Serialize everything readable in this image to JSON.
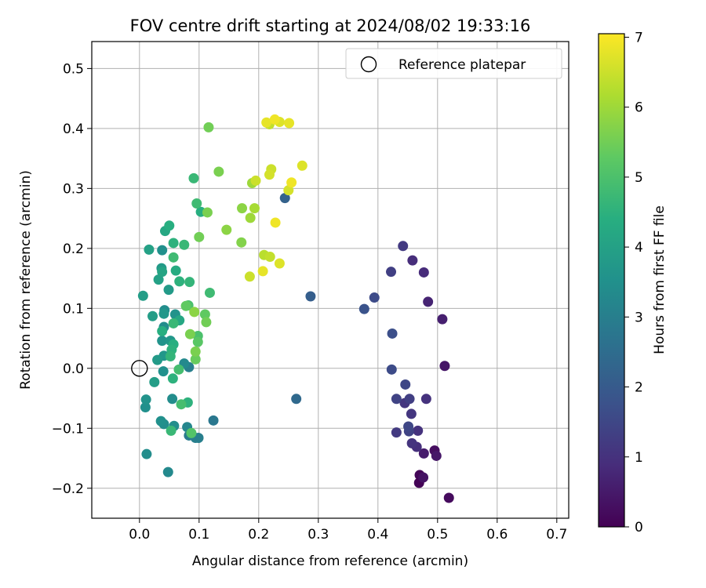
{
  "chart_data": {
    "type": "scatter",
    "title": "FOV centre drift starting at 2024/08/02 19:33:16",
    "xlabel": "Angular distance from reference (arcmin)",
    "ylabel": "Rotation from reference (arcmin)",
    "xlim": [
      -0.08,
      0.72
    ],
    "ylim": [
      -0.25,
      0.545
    ],
    "xticks": [
      0.0,
      0.1,
      0.2,
      0.3,
      0.4,
      0.5,
      0.6,
      0.7
    ],
    "xtick_labels": [
      "0.0",
      "0.1",
      "0.2",
      "0.3",
      "0.4",
      "0.5",
      "0.6",
      "0.7"
    ],
    "yticks": [
      -0.2,
      -0.1,
      0.0,
      0.1,
      0.2,
      0.3,
      0.4,
      0.5
    ],
    "ytick_labels": [
      "−0.2",
      "−0.1",
      "0.0",
      "0.1",
      "0.2",
      "0.3",
      "0.4",
      "0.5"
    ],
    "grid": true,
    "legend": {
      "placement": "top-right",
      "entries": [
        "Reference platepar"
      ]
    },
    "reference_point": {
      "x": 0.0,
      "y": 0.0,
      "marker": "open-circle"
    },
    "colorbar": {
      "label": "Hours from first FF file",
      "colormap": "viridis",
      "range": [
        0,
        7.05
      ],
      "ticks": [
        0,
        1,
        2,
        3,
        4,
        5,
        6,
        7
      ],
      "tick_labels": [
        "0",
        "1",
        "2",
        "3",
        "4",
        "5",
        "6",
        "7"
      ]
    },
    "points": [
      {
        "x": 0.469,
        "y": -0.191,
        "c": 0.05
      },
      {
        "x": 0.47,
        "y": -0.178,
        "c": 0.1
      },
      {
        "x": 0.519,
        "y": -0.216,
        "c": 0.2
      },
      {
        "x": 0.495,
        "y": -0.137,
        "c": 0.25
      },
      {
        "x": 0.476,
        "y": -0.182,
        "c": 0.35
      },
      {
        "x": 0.498,
        "y": -0.146,
        "c": 0.45
      },
      {
        "x": 0.477,
        "y": -0.142,
        "c": 0.55
      },
      {
        "x": 0.512,
        "y": 0.004,
        "c": 0.4
      },
      {
        "x": 0.508,
        "y": 0.082,
        "c": 0.6
      },
      {
        "x": 0.484,
        "y": 0.111,
        "c": 0.7
      },
      {
        "x": 0.477,
        "y": 0.16,
        "c": 0.85
      },
      {
        "x": 0.458,
        "y": 0.18,
        "c": 0.9
      },
      {
        "x": 0.442,
        "y": 0.204,
        "c": 1.2
      },
      {
        "x": 0.422,
        "y": 0.161,
        "c": 1.3
      },
      {
        "x": 0.394,
        "y": 0.118,
        "c": 1.6
      },
      {
        "x": 0.377,
        "y": 0.099,
        "c": 1.8
      },
      {
        "x": 0.424,
        "y": 0.058,
        "c": 1.7
      },
      {
        "x": 0.423,
        "y": -0.002,
        "c": 1.6
      },
      {
        "x": 0.446,
        "y": -0.027,
        "c": 1.5
      },
      {
        "x": 0.431,
        "y": -0.051,
        "c": 1.4
      },
      {
        "x": 0.445,
        "y": -0.058,
        "c": 1.1
      },
      {
        "x": 0.453,
        "y": -0.051,
        "c": 1.3
      },
      {
        "x": 0.481,
        "y": -0.051,
        "c": 1.0
      },
      {
        "x": 0.456,
        "y": -0.076,
        "c": 1.1
      },
      {
        "x": 0.451,
        "y": -0.097,
        "c": 1.5
      },
      {
        "x": 0.452,
        "y": -0.105,
        "c": 1.4
      },
      {
        "x": 0.431,
        "y": -0.107,
        "c": 1.2
      },
      {
        "x": 0.467,
        "y": -0.104,
        "c": 1.0
      },
      {
        "x": 0.457,
        "y": -0.125,
        "c": 1.05
      },
      {
        "x": 0.465,
        "y": -0.131,
        "c": 0.95
      },
      {
        "x": 0.287,
        "y": 0.12,
        "c": 2.1
      },
      {
        "x": 0.244,
        "y": 0.284,
        "c": 2.2
      },
      {
        "x": 0.263,
        "y": -0.051,
        "c": 2.4
      },
      {
        "x": 0.124,
        "y": -0.087,
        "c": 2.8
      },
      {
        "x": 0.099,
        "y": -0.116,
        "c": 3.0
      },
      {
        "x": 0.083,
        "y": -0.112,
        "c": 2.9
      },
      {
        "x": 0.048,
        "y": -0.173,
        "c": 3.3
      },
      {
        "x": 0.012,
        "y": -0.143,
        "c": 3.4
      },
      {
        "x": 0.01,
        "y": -0.065,
        "c": 3.5
      },
      {
        "x": 0.011,
        "y": -0.052,
        "c": 3.6
      },
      {
        "x": 0.036,
        "y": -0.088,
        "c": 3.5
      },
      {
        "x": 0.058,
        "y": -0.096,
        "c": 3.4
      },
      {
        "x": 0.08,
        "y": -0.098,
        "c": 3.2
      },
      {
        "x": 0.055,
        "y": -0.051,
        "c": 3.4
      },
      {
        "x": 0.025,
        "y": -0.023,
        "c": 3.9
      },
      {
        "x": 0.04,
        "y": -0.005,
        "c": 3.5
      },
      {
        "x": 0.056,
        "y": -0.017,
        "c": 4.5
      },
      {
        "x": 0.066,
        "y": -0.002,
        "c": 4.9
      },
      {
        "x": 0.075,
        "y": 0.008,
        "c": 3.3
      },
      {
        "x": 0.083,
        "y": 0.002,
        "c": 3.0
      },
      {
        "x": 0.03,
        "y": 0.014,
        "c": 3.8
      },
      {
        "x": 0.041,
        "y": 0.021,
        "c": 3.7
      },
      {
        "x": 0.052,
        "y": 0.02,
        "c": 4.6
      },
      {
        "x": 0.038,
        "y": 0.046,
        "c": 3.6
      },
      {
        "x": 0.052,
        "y": 0.046,
        "c": 3.7
      },
      {
        "x": 0.057,
        "y": 0.04,
        "c": 4.4
      },
      {
        "x": 0.054,
        "y": 0.031,
        "c": 4.5
      },
      {
        "x": 0.038,
        "y": 0.062,
        "c": 4.4
      },
      {
        "x": 0.041,
        "y": 0.069,
        "c": 3.4
      },
      {
        "x": 0.057,
        "y": 0.075,
        "c": 4.7
      },
      {
        "x": 0.067,
        "y": 0.08,
        "c": 4.2
      },
      {
        "x": 0.022,
        "y": 0.087,
        "c": 3.9
      },
      {
        "x": 0.041,
        "y": 0.091,
        "c": 3.7
      },
      {
        "x": 0.042,
        "y": 0.097,
        "c": 3.4
      },
      {
        "x": 0.06,
        "y": 0.09,
        "c": 3.6
      },
      {
        "x": 0.078,
        "y": 0.104,
        "c": 5.3
      },
      {
        "x": 0.082,
        "y": 0.105,
        "c": 5.0
      },
      {
        "x": 0.092,
        "y": 0.094,
        "c": 5.8
      },
      {
        "x": 0.11,
        "y": 0.09,
        "c": 5.3
      },
      {
        "x": 0.112,
        "y": 0.077,
        "c": 5.5
      },
      {
        "x": 0.085,
        "y": 0.057,
        "c": 5.6
      },
      {
        "x": 0.098,
        "y": 0.054,
        "c": 5.0
      },
      {
        "x": 0.098,
        "y": 0.044,
        "c": 5.2
      },
      {
        "x": 0.094,
        "y": 0.028,
        "c": 5.6
      },
      {
        "x": 0.094,
        "y": 0.015,
        "c": 5.4
      },
      {
        "x": 0.006,
        "y": 0.121,
        "c": 3.9
      },
      {
        "x": 0.032,
        "y": 0.148,
        "c": 4.0
      },
      {
        "x": 0.037,
        "y": 0.167,
        "c": 3.8
      },
      {
        "x": 0.038,
        "y": 0.161,
        "c": 4.1
      },
      {
        "x": 0.049,
        "y": 0.131,
        "c": 3.8
      },
      {
        "x": 0.061,
        "y": 0.163,
        "c": 4.3
      },
      {
        "x": 0.067,
        "y": 0.145,
        "c": 4.5
      },
      {
        "x": 0.084,
        "y": 0.144,
        "c": 4.6
      },
      {
        "x": 0.118,
        "y": 0.126,
        "c": 4.8
      },
      {
        "x": 0.057,
        "y": 0.185,
        "c": 4.8
      },
      {
        "x": 0.016,
        "y": 0.198,
        "c": 4.0
      },
      {
        "x": 0.038,
        "y": 0.197,
        "c": 3.5
      },
      {
        "x": 0.057,
        "y": 0.209,
        "c": 4.5
      },
      {
        "x": 0.075,
        "y": 0.206,
        "c": 4.7
      },
      {
        "x": 0.043,
        "y": 0.229,
        "c": 4.2
      },
      {
        "x": 0.05,
        "y": 0.238,
        "c": 4.4
      },
      {
        "x": 0.1,
        "y": 0.219,
        "c": 5.5
      },
      {
        "x": 0.103,
        "y": 0.261,
        "c": 4.4
      },
      {
        "x": 0.114,
        "y": 0.26,
        "c": 5.6
      },
      {
        "x": 0.096,
        "y": 0.275,
        "c": 4.8
      },
      {
        "x": 0.091,
        "y": 0.317,
        "c": 4.7
      },
      {
        "x": 0.133,
        "y": 0.328,
        "c": 5.6
      },
      {
        "x": 0.116,
        "y": 0.402,
        "c": 5.5
      },
      {
        "x": 0.146,
        "y": 0.231,
        "c": 5.8
      },
      {
        "x": 0.171,
        "y": 0.21,
        "c": 5.7
      },
      {
        "x": 0.172,
        "y": 0.267,
        "c": 5.8
      },
      {
        "x": 0.186,
        "y": 0.251,
        "c": 6.0
      },
      {
        "x": 0.193,
        "y": 0.267,
        "c": 6.1
      },
      {
        "x": 0.189,
        "y": 0.309,
        "c": 6.0
      },
      {
        "x": 0.195,
        "y": 0.313,
        "c": 6.5
      },
      {
        "x": 0.185,
        "y": 0.153,
        "c": 6.5
      },
      {
        "x": 0.207,
        "y": 0.162,
        "c": 6.8
      },
      {
        "x": 0.209,
        "y": 0.189,
        "c": 6.3
      },
      {
        "x": 0.219,
        "y": 0.186,
        "c": 6.4
      },
      {
        "x": 0.235,
        "y": 0.175,
        "c": 6.7
      },
      {
        "x": 0.228,
        "y": 0.243,
        "c": 6.9
      },
      {
        "x": 0.218,
        "y": 0.323,
        "c": 6.6
      },
      {
        "x": 0.221,
        "y": 0.332,
        "c": 6.5
      },
      {
        "x": 0.25,
        "y": 0.297,
        "c": 6.6
      },
      {
        "x": 0.255,
        "y": 0.31,
        "c": 6.9
      },
      {
        "x": 0.273,
        "y": 0.338,
        "c": 6.7
      },
      {
        "x": 0.213,
        "y": 0.41,
        "c": 6.8
      },
      {
        "x": 0.218,
        "y": 0.407,
        "c": 6.4
      },
      {
        "x": 0.227,
        "y": 0.415,
        "c": 6.9
      },
      {
        "x": 0.235,
        "y": 0.411,
        "c": 6.7
      },
      {
        "x": 0.251,
        "y": 0.409,
        "c": 6.8
      },
      {
        "x": 0.094,
        "y": -0.116,
        "c": 3.0
      },
      {
        "x": 0.041,
        "y": -0.093,
        "c": 3.4
      },
      {
        "x": 0.087,
        "y": -0.108,
        "c": 5.1
      },
      {
        "x": 0.053,
        "y": -0.104,
        "c": 4.7
      },
      {
        "x": 0.07,
        "y": -0.06,
        "c": 4.9
      },
      {
        "x": 0.081,
        "y": -0.057,
        "c": 4.5
      }
    ]
  }
}
